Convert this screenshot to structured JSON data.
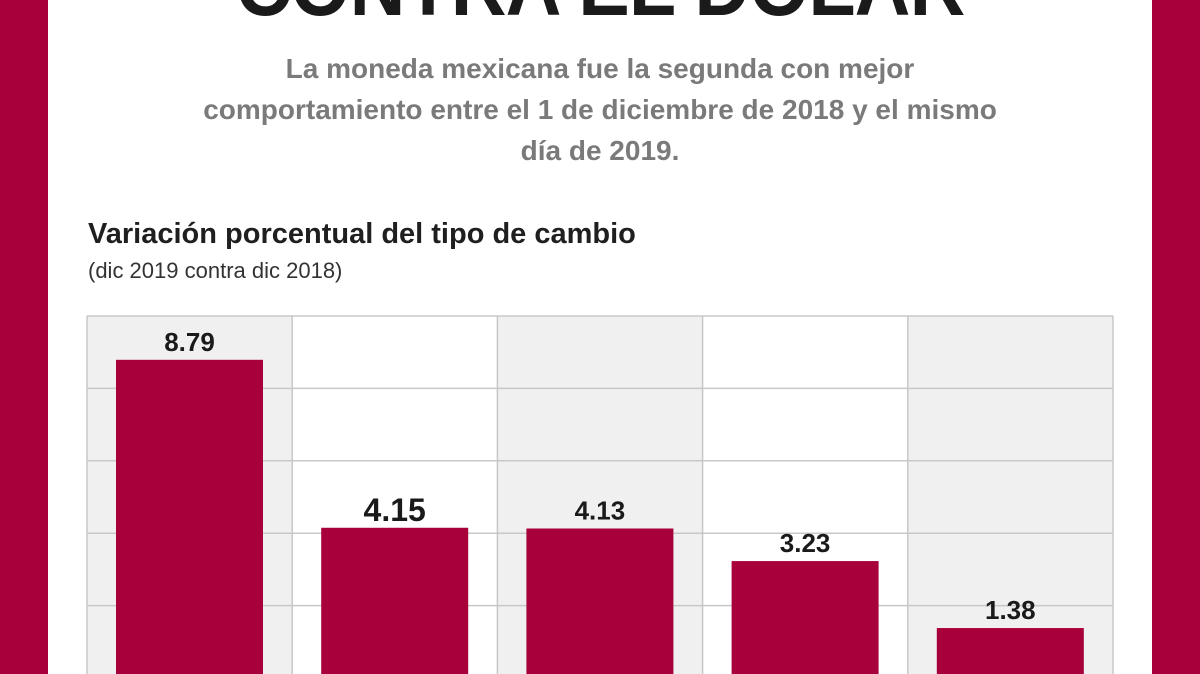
{
  "header": {
    "title": "CONTRA EL DÓLAR",
    "subtitle_lines": [
      "La moneda mexicana fue la segunda con mejor",
      "comportamiento entre el 1 de diciembre de 2018 y el mismo",
      "día de 2019."
    ]
  },
  "colors": {
    "frame": "#a8003b",
    "bar": "#a8003b",
    "grid_band": "#f0f0f0",
    "grid_line": "#c8c8c8"
  },
  "chart_data": {
    "type": "bar",
    "title": "Variación porcentual del tipo de cambio",
    "subtitle": "(dic 2019 contra dic 2018)",
    "values": [
      8.79,
      4.15,
      4.13,
      3.23,
      1.38
    ],
    "labels": [
      "8.79",
      "4.15",
      "4.13",
      "3.23",
      "1.38"
    ],
    "highlighted_index": 1,
    "ylim": [
      0,
      10
    ],
    "grid": true
  }
}
